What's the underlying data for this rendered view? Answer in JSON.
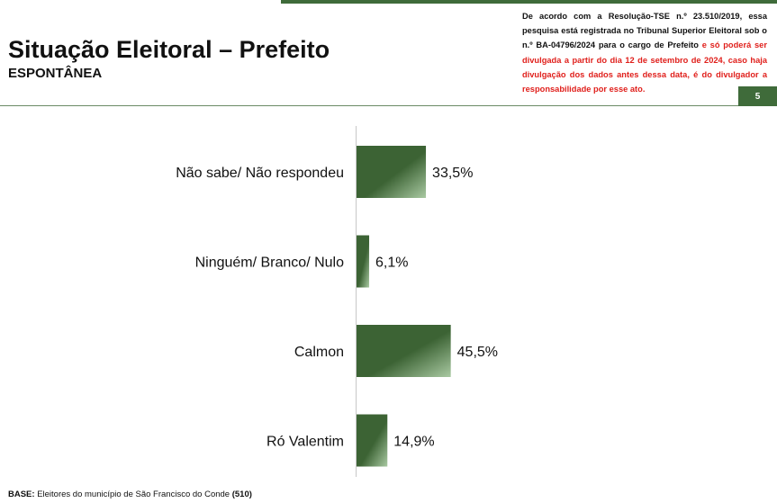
{
  "header": {
    "title": "Situação Eleitoral – Prefeito",
    "subtitle": "ESPONTÂNEA",
    "page_number": "5",
    "disclaimer_black": "De acordo com a Resolução-TSE n.º 23.510/2019, essa pesquisa está registrada no Tribunal Superior Eleitoral sob o n.º BA-04796/2024 para o cargo de Prefeito",
    "disclaimer_red": "e só poderá ser divulgada a partir do dia 12 de setembro de 2024, caso haja divulgação dos dados antes dessa data, é do divulgador a responsabilidade por esse ato."
  },
  "footer": {
    "base_label": "BASE:",
    "base_text": "Eleitores do município de São Francisco do Conde",
    "base_count": "(510)"
  },
  "colors": {
    "bar_dark": "#3c6334",
    "bar_light": "#a9c9a2",
    "accent": "#3f6b3a"
  },
  "chart_data": {
    "type": "bar",
    "orientation": "horizontal",
    "title": "",
    "xlabel": "",
    "ylabel": "",
    "categories": [
      "Não sabe/ Não respondeu",
      "Ninguém/ Branco/ Nulo",
      "Calmon",
      "Ró Valentim"
    ],
    "values": [
      33.5,
      6.1,
      45.5,
      14.9
    ],
    "value_labels": [
      "33,5%",
      "6,1%",
      "45,5%",
      "14,9%"
    ],
    "grid": false,
    "legend": "none"
  }
}
